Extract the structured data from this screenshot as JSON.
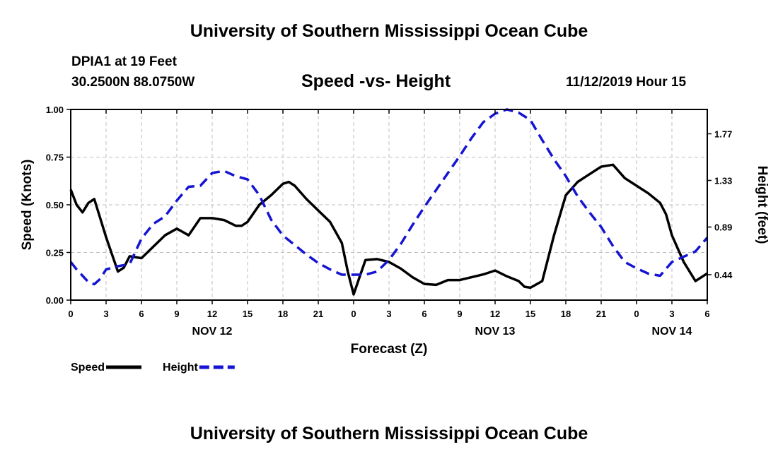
{
  "header": {
    "title": "University of Southern Mississippi Ocean Cube",
    "station": "DPIA1 at 19 Feet",
    "coords": "30.2500N 88.0750W",
    "subtitle": "Speed -vs- Height",
    "datetime": "11/12/2019 Hour 15"
  },
  "footer": {
    "title": "University of Southern Mississippi Ocean Cube"
  },
  "chart_data": {
    "type": "line",
    "title": "Speed -vs- Height",
    "xlabel": "Forecast (Z)",
    "ylabel": "Speed (Knots)",
    "y2label": "Height (feet)",
    "xlim": [
      0,
      54
    ],
    "ylim": [
      0,
      1.0
    ],
    "y2lim": [
      0.2,
      2.0
    ],
    "x_ticks": [
      0,
      3,
      6,
      9,
      12,
      15,
      18,
      21,
      24,
      27,
      30,
      33,
      36,
      39,
      42,
      45,
      48,
      51,
      54
    ],
    "x_tick_labels": [
      "0",
      "3",
      "6",
      "9",
      "12",
      "15",
      "18",
      "21",
      "0",
      "3",
      "6",
      "9",
      "12",
      "15",
      "18",
      "21",
      "0",
      "3",
      "6"
    ],
    "date_labels": [
      {
        "x": 12,
        "label": "NOV 12"
      },
      {
        "x": 36,
        "label": "NOV 13"
      },
      {
        "x": 51,
        "label": "NOV 14"
      }
    ],
    "y_ticks": [
      0.0,
      0.25,
      0.5,
      0.75,
      1.0
    ],
    "y_tick_labels": [
      "0.00",
      "0.25",
      "0.50",
      "0.75",
      "1.00"
    ],
    "y2_ticks": [
      0.44,
      0.89,
      1.33,
      1.77
    ],
    "y2_tick_labels": [
      "0.44",
      "0.89",
      "1.33",
      "1.77"
    ],
    "grid": true,
    "legend_position": "bottom-left",
    "series": [
      {
        "name": "Speed",
        "axis": "left",
        "color": "#000000",
        "dash": false,
        "x": [
          0,
          0.5,
          1,
          1.5,
          2,
          3,
          4,
          4.5,
          5,
          6,
          7,
          8,
          9,
          10,
          11,
          12,
          13,
          14,
          14.5,
          15,
          16,
          17,
          18,
          18.5,
          19,
          20,
          21,
          22,
          23,
          23.5,
          24,
          24.5,
          25,
          26,
          27,
          28,
          29,
          30,
          31,
          32,
          33,
          34,
          35,
          36,
          37,
          38,
          38.5,
          39,
          40,
          41,
          42,
          43,
          44,
          45,
          46,
          47,
          48,
          49,
          50,
          50.5,
          51,
          52,
          53,
          54
        ],
        "values": [
          0.58,
          0.5,
          0.46,
          0.51,
          0.53,
          0.33,
          0.15,
          0.17,
          0.23,
          0.22,
          0.28,
          0.34,
          0.375,
          0.34,
          0.43,
          0.43,
          0.42,
          0.39,
          0.39,
          0.41,
          0.5,
          0.55,
          0.61,
          0.62,
          0.6,
          0.53,
          0.47,
          0.41,
          0.3,
          0.15,
          0.03,
          0.12,
          0.21,
          0.215,
          0.2,
          0.165,
          0.12,
          0.085,
          0.08,
          0.105,
          0.105,
          0.12,
          0.135,
          0.155,
          0.125,
          0.1,
          0.07,
          0.065,
          0.1,
          0.34,
          0.55,
          0.62,
          0.66,
          0.7,
          0.71,
          0.64,
          0.6,
          0.56,
          0.51,
          0.45,
          0.34,
          0.2,
          0.1,
          0.14
        ]
      },
      {
        "name": "Height",
        "axis": "right",
        "color": "#1414d2",
        "dash": true,
        "x": [
          0,
          0.5,
          1,
          1.5,
          2,
          2.5,
          3,
          4,
          5,
          6,
          7,
          8,
          9,
          10,
          11,
          12,
          13,
          14,
          15,
          16,
          17,
          18,
          19,
          20,
          21,
          22,
          23,
          24,
          25,
          26,
          27,
          28,
          29,
          30,
          31,
          32,
          33,
          34,
          35,
          36,
          37,
          38,
          39,
          40,
          41,
          42,
          43,
          44,
          45,
          46,
          47,
          48,
          49,
          50,
          51,
          52,
          53,
          54
        ],
        "values": [
          0.56,
          0.49,
          0.43,
          0.37,
          0.35,
          0.4,
          0.49,
          0.52,
          0.54,
          0.78,
          0.92,
          0.99,
          1.14,
          1.27,
          1.28,
          1.4,
          1.42,
          1.37,
          1.34,
          1.19,
          0.96,
          0.81,
          0.72,
          0.63,
          0.55,
          0.49,
          0.44,
          0.44,
          0.44,
          0.47,
          0.58,
          0.73,
          0.91,
          1.08,
          1.24,
          1.4,
          1.56,
          1.73,
          1.88,
          1.96,
          2.0,
          1.97,
          1.9,
          1.71,
          1.53,
          1.37,
          1.18,
          1.03,
          0.89,
          0.71,
          0.56,
          0.5,
          0.45,
          0.43,
          0.56,
          0.61,
          0.66,
          0.79
        ]
      }
    ]
  }
}
